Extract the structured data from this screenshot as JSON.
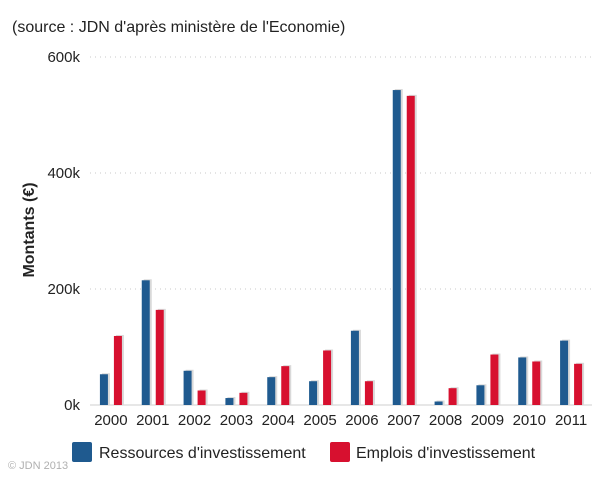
{
  "chart_data": {
    "type": "bar",
    "subtitle": "(source : JDN d'après ministère de l'Economie)",
    "xlabel": "",
    "ylabel": "Montants (€)",
    "ylim": [
      0,
      600000
    ],
    "yticks": [
      0,
      200000,
      400000,
      600000
    ],
    "ytick_labels": [
      "0k",
      "200k",
      "400k",
      "600k"
    ],
    "grid": true,
    "legend_position": "bottom-left",
    "categories": [
      "2000",
      "2001",
      "2002",
      "2003",
      "2004",
      "2005",
      "2006",
      "2007",
      "2008",
      "2009",
      "2010",
      "2011"
    ],
    "series": [
      {
        "name": "Ressources d'investissement",
        "color": "#1f5a8f",
        "values": [
          53000,
          215000,
          59000,
          12000,
          48000,
          41000,
          128000,
          543000,
          6000,
          34000,
          82000,
          111000
        ]
      },
      {
        "name": "Emplois d'investissement",
        "color": "#d7102f",
        "values": [
          119000,
          164000,
          25000,
          21000,
          67000,
          94000,
          41000,
          533000,
          29000,
          87000,
          75000,
          71000
        ]
      }
    ]
  },
  "credit": "© JDN 2013"
}
